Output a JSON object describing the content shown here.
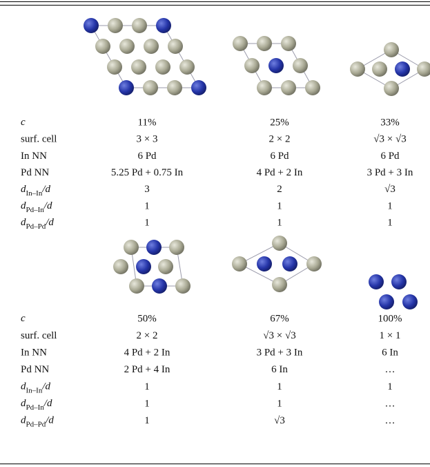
{
  "table": {
    "blocks": [
      {
        "rows": [
          {
            "label": {
              "symbol": "c"
            },
            "cells": [
              "11%",
              "25%",
              "33%"
            ]
          },
          {
            "label": "surf. cell",
            "cells": [
              "3 × 3",
              "2 × 2",
              "√3 × √3"
            ]
          },
          {
            "label": "In NN",
            "cells": [
              "6 Pd",
              "6 Pd",
              "6 Pd"
            ]
          },
          {
            "label": "Pd NN",
            "cells": [
              "5.25 Pd + 0.75 In",
              "4 Pd + 2 In",
              "3 Pd + 3 In"
            ]
          },
          {
            "label": {
              "symbol": "d",
              "sub": "In–In",
              "after": "/d"
            },
            "cells": [
              "3",
              "2",
              "√3"
            ]
          },
          {
            "label": {
              "symbol": "d",
              "sub": "Pd–In",
              "after": "/d"
            },
            "cells": [
              "1",
              "1",
              "1"
            ]
          },
          {
            "label": {
              "symbol": "d",
              "sub": "Pd–Pd",
              "after": "/d"
            },
            "cells": [
              "1",
              "1",
              "1"
            ]
          }
        ]
      },
      {
        "rows": [
          {
            "label": {
              "symbol": "c"
            },
            "cells": [
              "50%",
              "67%",
              "100%"
            ]
          },
          {
            "label": "surf. cell",
            "cells": [
              "2 × 2",
              "√3 × √3",
              "1 × 1"
            ]
          },
          {
            "label": "In NN",
            "cells": [
              "4 Pd + 2 In",
              "3 Pd + 3 In",
              "6 In"
            ]
          },
          {
            "label": "Pd NN",
            "cells": [
              "2 Pd + 4 In",
              "6 In",
              "…"
            ]
          },
          {
            "label": {
              "symbol": "d",
              "sub": "In–In",
              "after": "/d"
            },
            "cells": [
              "1",
              "1",
              "1"
            ]
          },
          {
            "label": {
              "symbol": "d",
              "sub": "Pd–In",
              "after": "/d"
            },
            "cells": [
              "1",
              "1",
              "…"
            ]
          },
          {
            "label": {
              "symbol": "d",
              "sub": "Pd–Pd",
              "after": "/d"
            },
            "cells": [
              "1",
              "√3",
              "…"
            ]
          }
        ]
      }
    ]
  }
}
